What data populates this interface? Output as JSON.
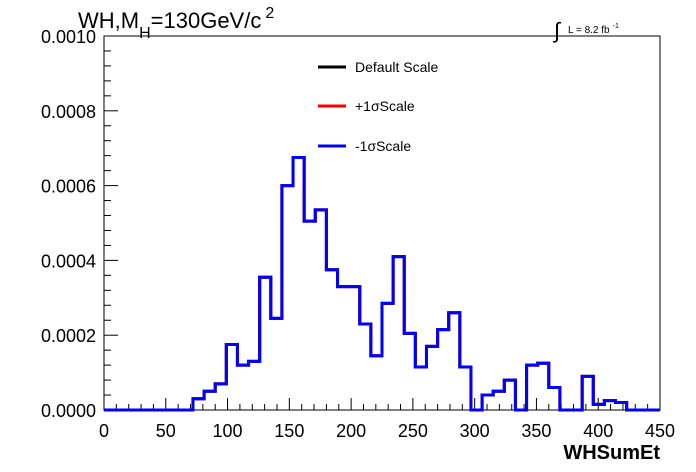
{
  "title": {
    "main": "WH,M",
    "sub": "H",
    "rest": "=130GeV/c",
    "sup": "2"
  },
  "lumi": {
    "integral": "∫",
    "text": "L = 8.2 fb",
    "sup": "-1"
  },
  "chart_data": {
    "type": "line",
    "xlabel": "WHSumEt",
    "ylabel": "",
    "xlim": [
      0,
      450
    ],
    "ylim": [
      0,
      0.001
    ],
    "x_ticks": [
      "0",
      "50",
      "100",
      "150",
      "200",
      "250",
      "300",
      "350",
      "400",
      "450"
    ],
    "y_ticks": [
      "0.0000",
      "0.0002",
      "0.0004",
      "0.0006",
      "0.0008",
      "0.0010"
    ],
    "bin_width": 9,
    "bin_edges_start": 0,
    "series": [
      {
        "name": "Default Scale",
        "color": "#000000",
        "values": [
          0,
          0,
          0,
          0,
          0,
          0,
          0,
          0,
          3e-05,
          5e-05,
          7e-05,
          0.000175,
          0.00012,
          0.00013,
          0.000355,
          0.000245,
          0.0006,
          0.000675,
          0.000505,
          0.000535,
          0.000375,
          0.00033,
          0.00033,
          0.00023,
          0.000145,
          0.000285,
          0.00041,
          0.000205,
          0.000115,
          0.00017,
          0.000215,
          0.00026,
          0.000115,
          0,
          4e-05,
          5e-05,
          8e-05,
          0,
          0.00012,
          0.000125,
          6e-05,
          0,
          0,
          9e-05,
          1.5e-05,
          2.5e-05,
          2e-05,
          0,
          0,
          0
        ]
      },
      {
        "name": "+1σScale",
        "color": "#ff0000",
        "values": [
          0,
          0,
          0,
          0,
          0,
          0,
          0,
          0,
          3e-05,
          5e-05,
          7e-05,
          0.000175,
          0.00012,
          0.00013,
          0.000355,
          0.000245,
          0.0006,
          0.000675,
          0.000505,
          0.000535,
          0.000375,
          0.00033,
          0.00033,
          0.00023,
          0.000145,
          0.000285,
          0.00041,
          0.000205,
          0.000115,
          0.00017,
          0.000215,
          0.00026,
          0.000115,
          0,
          4e-05,
          5e-05,
          8e-05,
          0,
          0.00012,
          0.000125,
          6e-05,
          0,
          0,
          9e-05,
          1.5e-05,
          2.5e-05,
          2e-05,
          0,
          0,
          0
        ]
      },
      {
        "name": "-1σScale",
        "color": "#0000ff",
        "values": [
          0,
          0,
          0,
          0,
          0,
          0,
          0,
          0,
          3e-05,
          5e-05,
          7e-05,
          0.000175,
          0.00012,
          0.00013,
          0.000355,
          0.000245,
          0.0006,
          0.000675,
          0.000505,
          0.000535,
          0.000375,
          0.00033,
          0.00033,
          0.00023,
          0.000145,
          0.000285,
          0.00041,
          0.000205,
          0.000115,
          0.00017,
          0.000215,
          0.00026,
          0.000115,
          0,
          4e-05,
          5e-05,
          8e-05,
          0,
          0.00012,
          0.000125,
          6e-05,
          0,
          0,
          9e-05,
          1.5e-05,
          2.5e-05,
          2e-05,
          0,
          0,
          0
        ]
      }
    ],
    "legend": {
      "placement": "top-center",
      "entries": [
        "Default Scale",
        "+1σScale",
        "-1σScale"
      ]
    },
    "grid": false
  }
}
